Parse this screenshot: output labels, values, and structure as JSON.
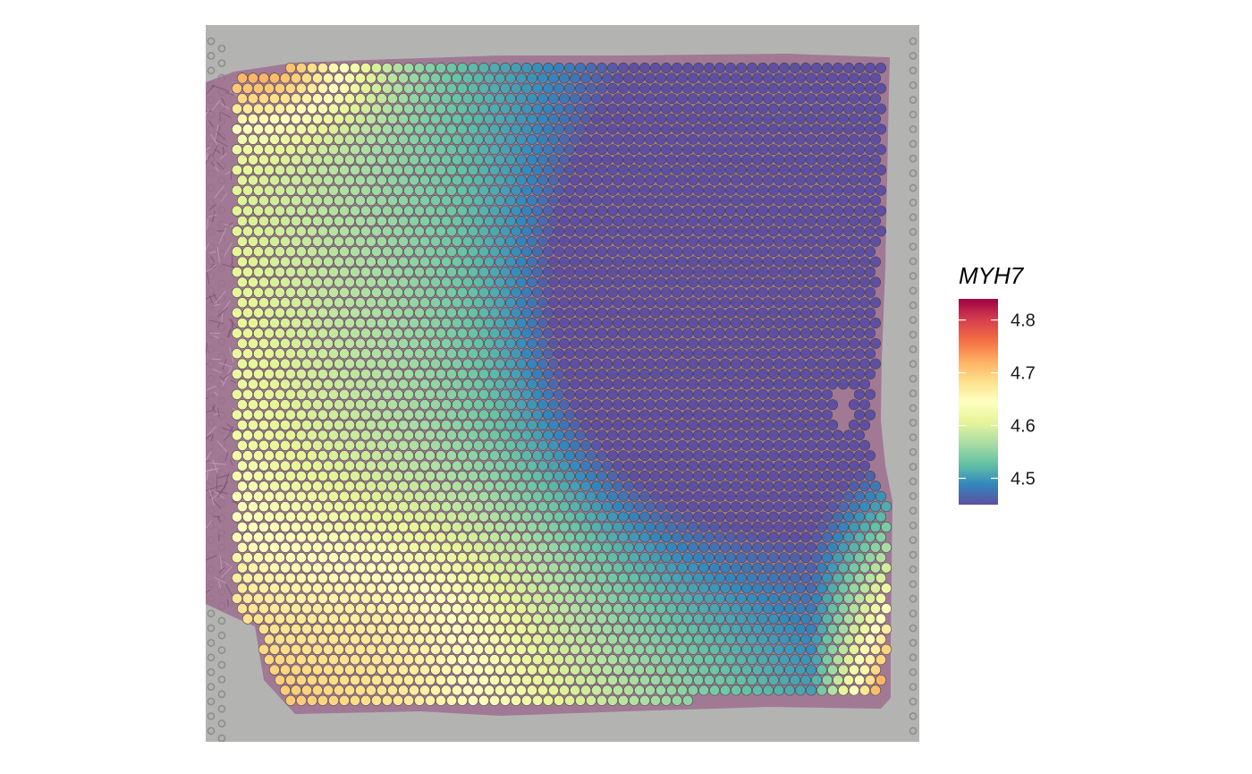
{
  "chart_data": {
    "type": "heatmap",
    "subtype": "spatial-spot-plot",
    "title": "",
    "xlabel": "",
    "ylabel": "",
    "background": "tissue histology image (H&E), grey slide with fiducial spot frame",
    "spot_grid": {
      "columns": 61,
      "rows": 64,
      "layout": "hexagonal"
    },
    "color_scale": {
      "palette": "Spectral (reversed)",
      "stops": [
        "#5e4fa2",
        "#3288bd",
        "#66c2a5",
        "#abdda4",
        "#e6f598",
        "#ffffbf",
        "#fee08b",
        "#fdae61",
        "#f46d43",
        "#d53e4f",
        "#9e0142"
      ],
      "range": [
        4.45,
        4.84
      ]
    },
    "legend": {
      "title": "MYH7",
      "ticks": [
        "4.8",
        "4.7",
        "4.6",
        "4.5"
      ],
      "tick_values": [
        4.8,
        4.7,
        4.6,
        4.5
      ],
      "position": "right"
    },
    "value_field_description": "Smoothed MYH7 expression: highest (~4.8) at the top-left corner, lower-left and lower-right edge; lowest (~4.45) in a basin in the upper-right interior; values between 4.5 and 4.7 across the rest of the tissue."
  }
}
